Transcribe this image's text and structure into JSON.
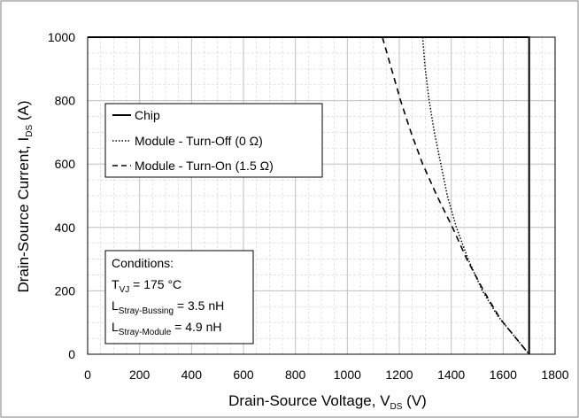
{
  "chart_data": {
    "type": "line",
    "xlabel": {
      "main": "Drain-Source Voltage, V",
      "sub": "DS",
      "unit": " (V)"
    },
    "ylabel": {
      "main": "Drain-Source Current, I",
      "sub": "DS",
      "unit": " (A)"
    },
    "xlim": [
      0,
      1800
    ],
    "ylim": [
      0,
      1000
    ],
    "xticks": [
      0,
      200,
      400,
      600,
      800,
      1000,
      1200,
      1400,
      1600,
      1800
    ],
    "yticks": [
      0,
      200,
      400,
      600,
      800,
      1000
    ],
    "grid": true,
    "legend_position": "top-left",
    "series": [
      {
        "name": "Chip",
        "style": "solid",
        "color": "#000000",
        "points": [
          [
            0,
            1000
          ],
          [
            1700,
            1000
          ],
          [
            1700,
            0
          ]
        ]
      },
      {
        "name": "Module - Turn-Off (0 Ω)",
        "style": "dotted",
        "color": "#000000",
        "points": [
          [
            1290,
            1000
          ],
          [
            1300,
            900
          ],
          [
            1315,
            800
          ],
          [
            1335,
            700
          ],
          [
            1360,
            600
          ],
          [
            1385,
            500
          ],
          [
            1420,
            400
          ],
          [
            1465,
            300
          ],
          [
            1520,
            200
          ],
          [
            1580,
            120
          ],
          [
            1640,
            60
          ],
          [
            1700,
            0
          ]
        ]
      },
      {
        "name": "Module - Turn-On (1.5 Ω)",
        "style": "dashed",
        "color": "#000000",
        "points": [
          [
            1135,
            1000
          ],
          [
            1170,
            900
          ],
          [
            1205,
            800
          ],
          [
            1245,
            700
          ],
          [
            1290,
            600
          ],
          [
            1345,
            500
          ],
          [
            1405,
            400
          ],
          [
            1460,
            300
          ],
          [
            1525,
            200
          ],
          [
            1590,
            110
          ],
          [
            1650,
            50
          ],
          [
            1700,
            0
          ]
        ]
      }
    ],
    "annotation": {
      "title": "Conditions:",
      "lines": [
        {
          "main": "T",
          "sub": "VJ",
          "rest": " = 175 °C"
        },
        {
          "main": "L",
          "sub": "Stray-Bussing",
          "rest": " = 3.5 nH"
        },
        {
          "main": "L",
          "sub": "Stray-Module",
          "rest": " = 4.9 nH"
        }
      ]
    }
  }
}
